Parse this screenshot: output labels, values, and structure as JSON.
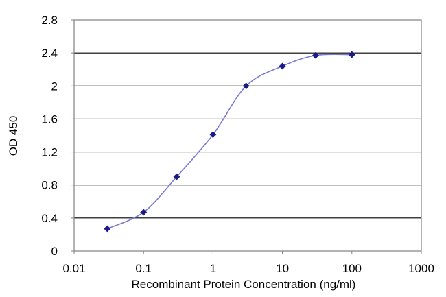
{
  "chart_data": {
    "type": "line",
    "title": "",
    "xlabel": "Recombinant Protein Concentration (ng/ml)",
    "ylabel": "OD 450",
    "x_scale": "log",
    "xlim": [
      0.01,
      1000
    ],
    "ylim": [
      0,
      2.8
    ],
    "x_ticks": [
      "0.01",
      "0.1",
      "1",
      "10",
      "100",
      "1000"
    ],
    "x_tick_values": [
      0.01,
      0.1,
      1,
      10,
      100,
      1000
    ],
    "y_ticks": [
      "0",
      "0.4",
      "0.8",
      "1.2",
      "1.6",
      "2",
      "2.4",
      "2.8"
    ],
    "y_tick_values": [
      0,
      0.4,
      0.8,
      1.2,
      1.6,
      2,
      2.4,
      2.8
    ],
    "grid": "horizontal",
    "legend": "none",
    "series": [
      {
        "x": [
          0.03,
          0.1,
          0.3,
          1,
          3,
          10,
          30,
          100
        ],
        "y": [
          0.27,
          0.47,
          0.9,
          1.41,
          2.0,
          2.24,
          2.37,
          2.38
        ],
        "color": "#1a1a8c",
        "line_color": "#7a7ad6"
      }
    ]
  }
}
